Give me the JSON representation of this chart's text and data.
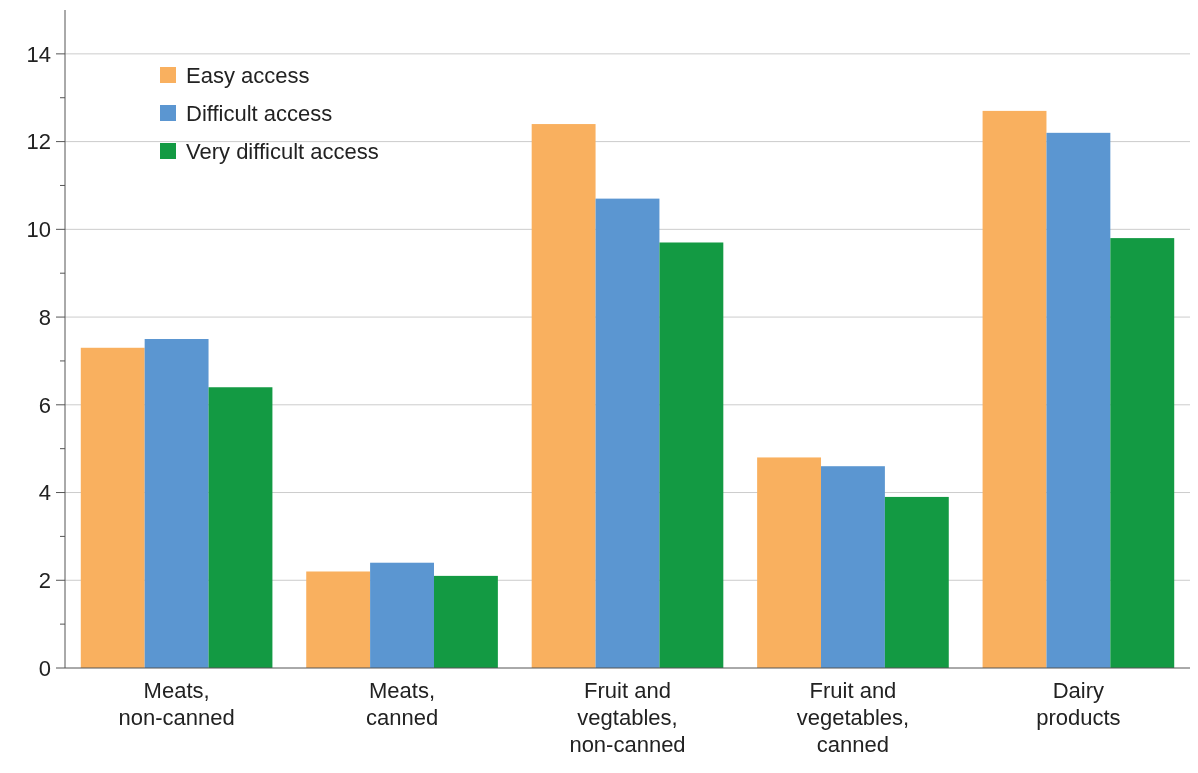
{
  "chart_data": {
    "type": "bar",
    "categories": [
      "Meats, non-canned",
      "Meats, canned",
      "Fruit and vegtables, non-canned",
      "Fruit and vegetables, canned",
      "Dairy products"
    ],
    "series": [
      {
        "name": "Easy access",
        "color": "#f9b05f",
        "values": [
          7.3,
          2.2,
          12.4,
          4.8,
          12.7
        ]
      },
      {
        "name": "Difficult access",
        "color": "#5b96d1",
        "values": [
          7.5,
          2.4,
          10.7,
          4.6,
          12.2
        ]
      },
      {
        "name": "Very difficult access",
        "color": "#139a43",
        "values": [
          6.4,
          2.1,
          9.7,
          3.9,
          9.8
        ]
      }
    ],
    "ylim": [
      0,
      15
    ],
    "yticks": [
      0,
      {
        "value": 1,
        "label": null
      },
      2,
      {
        "value": 3,
        "label": null
      },
      4,
      {
        "value": 5,
        "label": null
      },
      6,
      {
        "value": 7,
        "label": null
      },
      8,
      {
        "value": 9,
        "label": null
      },
      10,
      {
        "value": 11,
        "label": null
      },
      12,
      {
        "value": 13,
        "label": null
      },
      14
    ],
    "grid": "y",
    "legend": "top left"
  }
}
